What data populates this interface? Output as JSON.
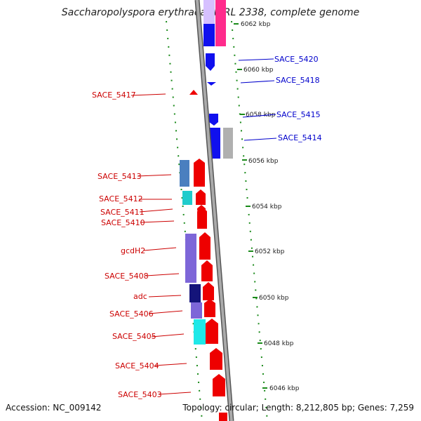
{
  "title": "Saccharopolyspora erythraea NRRL 2338, complete genome",
  "footer": {
    "accession": "Accession: NC_009142",
    "stats": "Topology: circular; Length: 8,212,805 bp; Genes: 7,259"
  },
  "colors": {
    "forward_cds": "#ee0000",
    "reverse_cds": "#1010ee",
    "tick": "#1a8a1a",
    "backbone": "#8a8a8a",
    "red_label": "#cc0000",
    "blue_label": "#0000cc"
  },
  "scale_labels": [
    "6062 kbp",
    "6060 kbp",
    "6058 kbp",
    "6056 kbp",
    "6054 kbp",
    "6052 kbp",
    "6050 kbp",
    "6048 kbp",
    "6046 kbp"
  ],
  "forward_labels": [
    "SACE_5417",
    "SACE_5413",
    "SACE_5412",
    "SACE_5411",
    "SACE_5410",
    "gcdH2",
    "SACE_5408",
    "adc",
    "SACE_5406",
    "SACE_5405",
    "SACE_5404",
    "SACE_5403"
  ],
  "reverse_labels": [
    "SACE_5420",
    "SACE_5418",
    "SACE_5415",
    "SACE_5414"
  ]
}
